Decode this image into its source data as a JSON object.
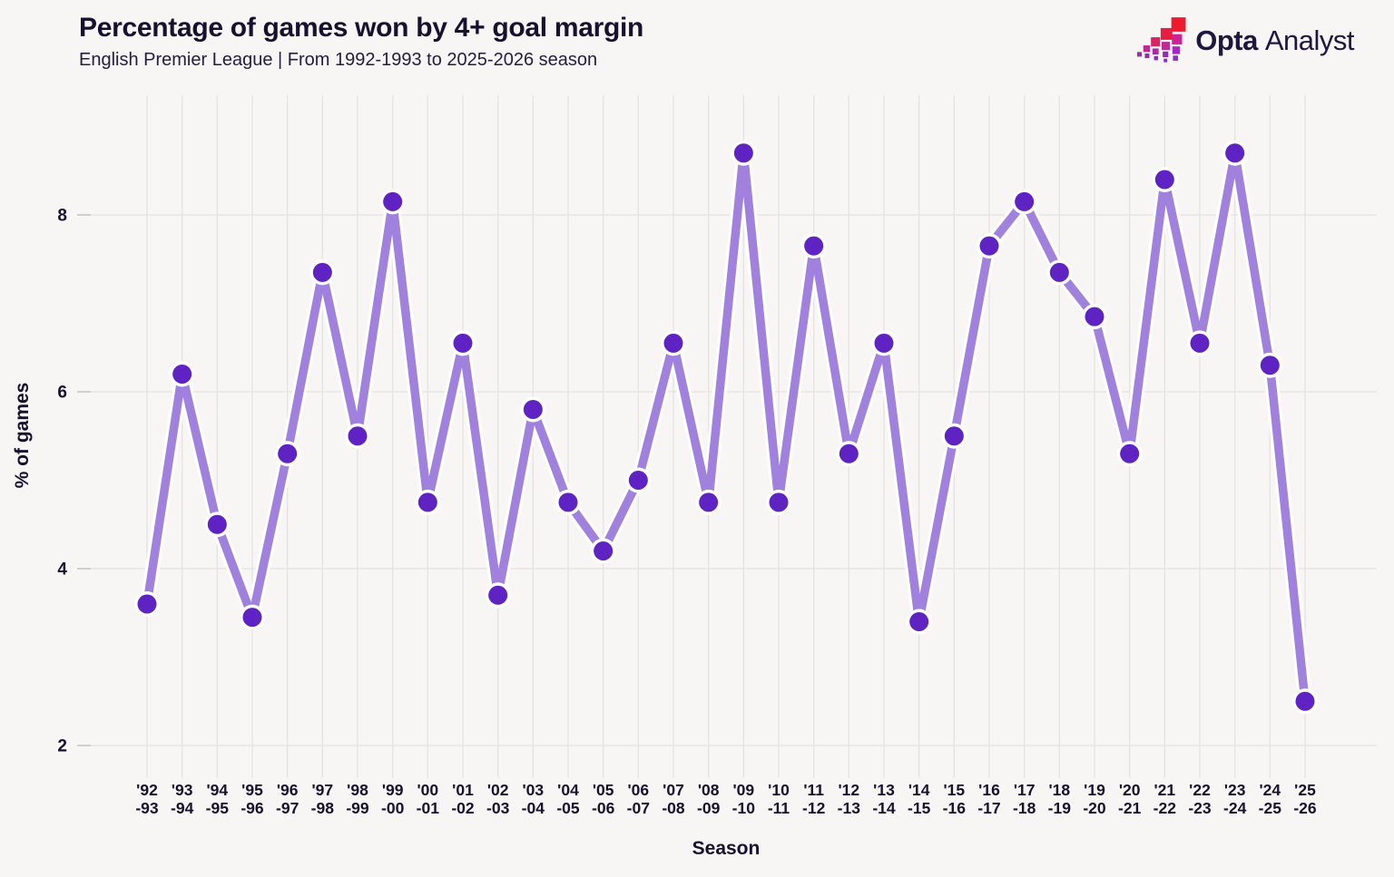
{
  "page": {
    "background": "#f7f6f4"
  },
  "header": {
    "title": "Percentage of games won by 4+ goal margin",
    "subtitle": "English Premier League | From 1992-1993 to 2025-2026 season",
    "title_color": "#17102e",
    "subtitle_color": "#241d40"
  },
  "brand": {
    "name_bold": "Opta",
    "name_regular": "Analyst",
    "text_color": "#1e1740",
    "stairs_icon": {
      "squares": [
        [
          0,
          34,
          4.5,
          "#9c2ca6"
        ],
        [
          6,
          27.5,
          6.5,
          "#bd2a92"
        ],
        [
          13.5,
          19.5,
          9,
          "#d62465"
        ],
        [
          23,
          10.5,
          11.5,
          "#e71e42"
        ],
        [
          33.5,
          0,
          14,
          "#ee1b30"
        ],
        [
          7.5,
          35.5,
          4.5,
          "#952db4"
        ],
        [
          15,
          30.5,
          6,
          "#a92ba6"
        ],
        [
          24,
          24,
          8,
          "#bb2a97"
        ],
        [
          34,
          16.5,
          10,
          "#c92394"
        ],
        [
          16.5,
          38,
          4,
          "#8c2cc0"
        ],
        [
          25,
          33.5,
          5.5,
          "#9a2ab4"
        ],
        [
          34.5,
          28.5,
          7.5,
          "#a527c4"
        ],
        [
          26,
          40.5,
          3.5,
          "#8a2dc9"
        ],
        [
          35,
          37.5,
          5,
          "#942dd0"
        ]
      ]
    }
  },
  "chart_data": {
    "type": "line",
    "title": "Percentage of games won by 4+ goal margin",
    "subtitle": "English Premier League | From 1992-1993 to 2025-2026 season",
    "xlabel": "Season",
    "ylabel": "% of games",
    "y_ticks": [
      2,
      4,
      6,
      8
    ],
    "ylim": [
      1.6,
      9.4
    ],
    "grid": true,
    "legend": false,
    "categories": [
      "'92-93",
      "'93-94",
      "'94-95",
      "'95-96",
      "'96-97",
      "'97-98",
      "'98-99",
      "'99-00",
      "'00-01",
      "'01-02",
      "'02-03",
      "'03-04",
      "'04-05",
      "'05-06",
      "'06-07",
      "'07-08",
      "'08-09",
      "'09-10",
      "'10-11",
      "'11-12",
      "'12-13",
      "'13-14",
      "'14-15",
      "'15-16",
      "'16-17",
      "'17-18",
      "'18-19",
      "'19-20",
      "'20-21",
      "'21-22",
      "'22-23",
      "'23-24",
      "'24-25",
      "'25-26"
    ],
    "series": [
      {
        "name": "% of games won by 4+ goal margin",
        "values": [
          3.6,
          6.2,
          4.5,
          3.45,
          5.3,
          7.35,
          5.5,
          8.15,
          4.75,
          6.55,
          3.7,
          5.8,
          4.75,
          4.2,
          5.0,
          6.55,
          4.75,
          8.7,
          4.75,
          7.65,
          5.3,
          6.55,
          3.4,
          5.5,
          7.65,
          8.15,
          7.35,
          6.85,
          5.3,
          8.4,
          6.55,
          8.7,
          6.3,
          2.5
        ]
      }
    ],
    "colors": {
      "line": "#a082de",
      "marker": "#5f22c3",
      "halo": "#ffffff",
      "grid": "#e6e4e1",
      "tick_dash": "#c9c6c2",
      "axis_text": "#17102e"
    }
  }
}
